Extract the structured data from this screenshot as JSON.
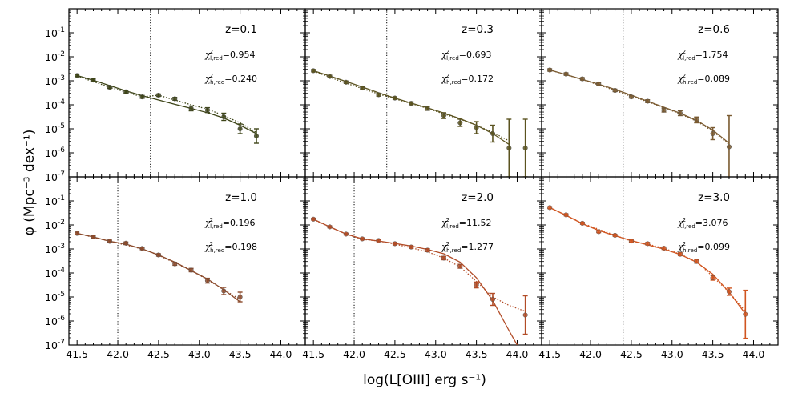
{
  "figure": {
    "ylabel": "φ (Mpc⁻³ dex⁻¹)",
    "xlabel": "log(L[OIII] erg s⁻¹)"
  },
  "chart_data": {
    "type": "scatter",
    "x_range": [
      41.4,
      44.3
    ],
    "y_range_log10": [
      -7,
      0
    ],
    "x_ticks": [
      "41.5",
      "42.0",
      "42.5",
      "43.0",
      "43.5",
      "44.0"
    ],
    "y_ticks": [
      "10^-7",
      "10^-6",
      "10^-5",
      "10^-4",
      "10^-3",
      "10^-2",
      "10^-1"
    ],
    "panels": [
      {
        "z_label": "z=0.1",
        "chi_low_label": "χ²l,red=0.954",
        "chi_high_label": "χ²h,red=0.240",
        "color": "#3d4417",
        "completeness_limit": 42.4,
        "points": [
          {
            "x": 41.5,
            "y": -2.78,
            "err": 0.05
          },
          {
            "x": 41.7,
            "y": -2.97,
            "err": 0.05
          },
          {
            "x": 41.9,
            "y": -3.27,
            "err": 0.05
          },
          {
            "x": 42.1,
            "y": -3.46,
            "err": 0.05
          },
          {
            "x": 42.3,
            "y": -3.67,
            "err": 0.06
          },
          {
            "x": 42.5,
            "y": -3.6,
            "err": 0.05
          },
          {
            "x": 42.7,
            "y": -3.75,
            "err": 0.06
          },
          {
            "x": 42.9,
            "y": -4.15,
            "err": 0.1
          },
          {
            "x": 43.1,
            "y": -4.22,
            "err": 0.1
          },
          {
            "x": 43.3,
            "y": -4.5,
            "err": 0.15
          },
          {
            "x": 43.5,
            "y": -5.0,
            "err": 0.2
          },
          {
            "x": 43.7,
            "y": -5.3,
            "err": 0.3
          }
        ],
        "fit_low": [
          [
            41.5,
            -2.78
          ],
          [
            41.7,
            -2.98
          ],
          [
            41.9,
            -3.2
          ],
          [
            42.1,
            -3.42
          ],
          [
            42.3,
            -3.62
          ],
          [
            42.5,
            -3.8
          ],
          [
            42.7,
            -3.98
          ],
          [
            42.9,
            -4.15
          ],
          [
            43.1,
            -4.33
          ],
          [
            43.3,
            -4.55
          ],
          [
            43.5,
            -4.85
          ],
          [
            43.7,
            -5.2
          ]
        ],
        "fit_high": [
          [
            41.5,
            -2.8
          ],
          [
            41.9,
            -3.27
          ],
          [
            42.3,
            -3.67
          ],
          [
            42.5,
            -3.6
          ],
          [
            42.7,
            -3.8
          ],
          [
            42.9,
            -4.0
          ],
          [
            43.1,
            -4.18
          ],
          [
            43.3,
            -4.45
          ],
          [
            43.5,
            -4.75
          ],
          [
            43.7,
            -5.15
          ]
        ]
      },
      {
        "z_label": "z=0.3",
        "chi_low_label": "χ²l,red=0.693",
        "chi_high_label": "χ²h,red=0.172",
        "color": "#5b5320",
        "completeness_limit": 42.4,
        "points": [
          {
            "x": 41.5,
            "y": -2.58,
            "err": 0.05
          },
          {
            "x": 41.7,
            "y": -2.82,
            "err": 0.05
          },
          {
            "x": 41.9,
            "y": -3.06,
            "err": 0.05
          },
          {
            "x": 42.1,
            "y": -3.3,
            "err": 0.05
          },
          {
            "x": 42.3,
            "y": -3.58,
            "err": 0.06
          },
          {
            "x": 42.5,
            "y": -3.72,
            "err": 0.05
          },
          {
            "x": 42.7,
            "y": -3.94,
            "err": 0.06
          },
          {
            "x": 42.9,
            "y": -4.15,
            "err": 0.08
          },
          {
            "x": 43.1,
            "y": -4.45,
            "err": 0.12
          },
          {
            "x": 43.3,
            "y": -4.75,
            "err": 0.15
          },
          {
            "x": 43.5,
            "y": -4.95,
            "err": 0.25
          },
          {
            "x": 43.7,
            "y": -5.2,
            "err": 0.35
          },
          {
            "x": 43.9,
            "y": -5.8,
            "err": 1.2
          },
          {
            "x": 44.1,
            "y": -5.8,
            "err": 1.2
          }
        ],
        "fit_low": [
          [
            41.5,
            -2.58
          ],
          [
            41.7,
            -2.8
          ],
          [
            41.9,
            -3.03
          ],
          [
            42.1,
            -3.26
          ],
          [
            42.3,
            -3.5
          ],
          [
            42.5,
            -3.72
          ],
          [
            42.7,
            -3.93
          ],
          [
            42.9,
            -4.13
          ],
          [
            43.1,
            -4.34
          ],
          [
            43.3,
            -4.58
          ],
          [
            43.5,
            -4.85
          ],
          [
            43.7,
            -5.2
          ],
          [
            43.9,
            -5.65
          ]
        ],
        "fit_high": [
          [
            41.5,
            -2.6
          ],
          [
            41.9,
            -3.1
          ],
          [
            42.3,
            -3.55
          ],
          [
            42.5,
            -3.75
          ],
          [
            42.7,
            -3.95
          ],
          [
            42.9,
            -4.15
          ],
          [
            43.1,
            -4.38
          ],
          [
            43.3,
            -4.6
          ],
          [
            43.5,
            -4.85
          ],
          [
            43.7,
            -5.15
          ],
          [
            43.9,
            -5.5
          ]
        ]
      },
      {
        "z_label": "z=0.6",
        "chi_low_label": "χ²l,red=1.754",
        "chi_high_label": "χ²h,red=0.089",
        "color": "#7a5a30",
        "completeness_limit": 42.4,
        "points": [
          {
            "x": 41.5,
            "y": -2.55,
            "err": 0.05
          },
          {
            "x": 41.7,
            "y": -2.72,
            "err": 0.05
          },
          {
            "x": 41.9,
            "y": -2.92,
            "err": 0.05
          },
          {
            "x": 42.1,
            "y": -3.13,
            "err": 0.05
          },
          {
            "x": 42.3,
            "y": -3.4,
            "err": 0.05
          },
          {
            "x": 42.5,
            "y": -3.67,
            "err": 0.05
          },
          {
            "x": 42.7,
            "y": -3.85,
            "err": 0.06
          },
          {
            "x": 42.9,
            "y": -4.22,
            "err": 0.08
          },
          {
            "x": 43.1,
            "y": -4.35,
            "err": 0.1
          },
          {
            "x": 43.3,
            "y": -4.63,
            "err": 0.12
          },
          {
            "x": 43.5,
            "y": -5.2,
            "err": 0.25
          },
          {
            "x": 43.7,
            "y": -5.75,
            "err": 1.3
          }
        ],
        "fit_low": [
          [
            41.5,
            -2.55
          ],
          [
            41.7,
            -2.74
          ],
          [
            41.9,
            -2.94
          ],
          [
            42.1,
            -3.14
          ],
          [
            42.3,
            -3.36
          ],
          [
            42.5,
            -3.6
          ],
          [
            42.7,
            -3.85
          ],
          [
            42.9,
            -4.1
          ],
          [
            43.1,
            -4.35
          ],
          [
            43.3,
            -4.65
          ],
          [
            43.5,
            -5.05
          ],
          [
            43.7,
            -5.6
          ]
        ],
        "fit_high": [
          [
            41.5,
            -2.55
          ],
          [
            41.9,
            -2.95
          ],
          [
            42.3,
            -3.4
          ],
          [
            42.5,
            -3.65
          ],
          [
            42.7,
            -3.87
          ],
          [
            42.9,
            -4.12
          ],
          [
            43.1,
            -4.38
          ],
          [
            43.3,
            -4.68
          ],
          [
            43.5,
            -5.1
          ],
          [
            43.7,
            -5.65
          ]
        ]
      },
      {
        "z_label": "z=1.0",
        "chi_low_label": "χ²l,red=0.196",
        "chi_high_label": "χ²h,red=0.198",
        "color": "#8b4a2b",
        "completeness_limit": 42.0,
        "points": [
          {
            "x": 41.5,
            "y": -2.35,
            "err": 0.05
          },
          {
            "x": 41.7,
            "y": -2.5,
            "err": 0.05
          },
          {
            "x": 41.9,
            "y": -2.68,
            "err": 0.05
          },
          {
            "x": 42.1,
            "y": -2.76,
            "err": 0.05
          },
          {
            "x": 42.3,
            "y": -2.98,
            "err": 0.05
          },
          {
            "x": 42.5,
            "y": -3.25,
            "err": 0.05
          },
          {
            "x": 42.7,
            "y": -3.62,
            "err": 0.06
          },
          {
            "x": 42.9,
            "y": -3.88,
            "err": 0.07
          },
          {
            "x": 43.1,
            "y": -4.32,
            "err": 0.1
          },
          {
            "x": 43.3,
            "y": -4.75,
            "err": 0.15
          },
          {
            "x": 43.5,
            "y": -5.0,
            "err": 0.2
          }
        ],
        "fit_low": [
          [
            41.5,
            -2.35
          ],
          [
            41.7,
            -2.5
          ],
          [
            41.9,
            -2.68
          ],
          [
            42.1,
            -2.8
          ],
          [
            42.3,
            -3.0
          ],
          [
            42.5,
            -3.25
          ],
          [
            42.7,
            -3.55
          ],
          [
            42.9,
            -3.9
          ],
          [
            43.1,
            -4.25
          ],
          [
            43.3,
            -4.7
          ],
          [
            43.5,
            -5.2
          ]
        ],
        "fit_high": [
          [
            41.5,
            -2.35
          ],
          [
            41.9,
            -2.68
          ],
          [
            42.3,
            -3.0
          ],
          [
            42.5,
            -3.26
          ],
          [
            42.7,
            -3.58
          ],
          [
            42.9,
            -3.9
          ],
          [
            43.1,
            -4.28
          ],
          [
            43.3,
            -4.7
          ],
          [
            43.5,
            -5.1
          ]
        ]
      },
      {
        "z_label": "z=2.0",
        "chi_low_label": "χ²l,red=11.52",
        "chi_high_label": "χ²h,red=1.277",
        "color": "#b24c27",
        "completeness_limit": 42.0,
        "points": [
          {
            "x": 41.5,
            "y": -1.76,
            "err": 0.04
          },
          {
            "x": 41.7,
            "y": -2.08,
            "err": 0.04
          },
          {
            "x": 41.9,
            "y": -2.38,
            "err": 0.04
          },
          {
            "x": 42.1,
            "y": -2.58,
            "err": 0.04
          },
          {
            "x": 42.3,
            "y": -2.65,
            "err": 0.04
          },
          {
            "x": 42.5,
            "y": -2.78,
            "err": 0.05
          },
          {
            "x": 42.7,
            "y": -2.92,
            "err": 0.05
          },
          {
            "x": 42.9,
            "y": -3.05,
            "err": 0.06
          },
          {
            "x": 43.1,
            "y": -3.38,
            "err": 0.07
          },
          {
            "x": 43.3,
            "y": -3.72,
            "err": 0.08
          },
          {
            "x": 43.5,
            "y": -4.5,
            "err": 0.12
          },
          {
            "x": 43.7,
            "y": -5.1,
            "err": 0.25
          },
          {
            "x": 44.1,
            "y": -5.75,
            "err": 0.8
          }
        ],
        "fit_low": [
          [
            41.5,
            -1.76
          ],
          [
            41.7,
            -2.08
          ],
          [
            41.9,
            -2.38
          ],
          [
            42.1,
            -2.58
          ],
          [
            42.3,
            -2.67
          ],
          [
            42.5,
            -2.77
          ],
          [
            42.7,
            -2.88
          ],
          [
            42.9,
            -3.02
          ],
          [
            43.1,
            -3.2
          ],
          [
            43.3,
            -3.55
          ],
          [
            43.5,
            -4.2
          ],
          [
            43.7,
            -5.15
          ],
          [
            43.9,
            -6.4
          ],
          [
            44.0,
            -7.0
          ]
        ],
        "fit_high": [
          [
            41.5,
            -1.78
          ],
          [
            41.9,
            -2.38
          ],
          [
            42.1,
            -2.6
          ],
          [
            42.3,
            -2.67
          ],
          [
            42.5,
            -2.8
          ],
          [
            42.7,
            -2.95
          ],
          [
            42.9,
            -3.12
          ],
          [
            43.1,
            -3.38
          ],
          [
            43.3,
            -3.75
          ],
          [
            43.5,
            -4.35
          ],
          [
            43.7,
            -5.0
          ],
          [
            43.9,
            -5.35
          ],
          [
            44.1,
            -5.6
          ]
        ]
      },
      {
        "z_label": "z=3.0",
        "chi_low_label": "χ²l,red=3.076",
        "chi_high_label": "χ²h,red=0.099",
        "color": "#d05520",
        "completeness_limit": 42.4,
        "points": [
          {
            "x": 41.5,
            "y": -1.28,
            "err": 0.04
          },
          {
            "x": 41.7,
            "y": -1.58,
            "err": 0.04
          },
          {
            "x": 41.9,
            "y": -1.93,
            "err": 0.04
          },
          {
            "x": 42.1,
            "y": -2.28,
            "err": 0.04
          },
          {
            "x": 42.3,
            "y": -2.43,
            "err": 0.04
          },
          {
            "x": 42.5,
            "y": -2.67,
            "err": 0.05
          },
          {
            "x": 42.7,
            "y": -2.78,
            "err": 0.05
          },
          {
            "x": 42.9,
            "y": -2.97,
            "err": 0.05
          },
          {
            "x": 43.1,
            "y": -3.22,
            "err": 0.06
          },
          {
            "x": 43.3,
            "y": -3.52,
            "err": 0.07
          },
          {
            "x": 43.5,
            "y": -4.2,
            "err": 0.1
          },
          {
            "x": 43.7,
            "y": -4.78,
            "err": 0.15
          },
          {
            "x": 43.9,
            "y": -5.72,
            "err": 1.0
          }
        ],
        "fit_low": [
          [
            41.5,
            -1.28
          ],
          [
            41.7,
            -1.6
          ],
          [
            41.9,
            -1.95
          ],
          [
            42.1,
            -2.23
          ],
          [
            42.3,
            -2.45
          ],
          [
            42.5,
            -2.65
          ],
          [
            42.7,
            -2.83
          ],
          [
            42.9,
            -3.01
          ],
          [
            43.1,
            -3.23
          ],
          [
            43.3,
            -3.55
          ],
          [
            43.5,
            -4.05
          ],
          [
            43.7,
            -4.8
          ],
          [
            43.9,
            -5.7
          ]
        ],
        "fit_high": [
          [
            41.5,
            -1.28
          ],
          [
            41.9,
            -1.93
          ],
          [
            42.3,
            -2.43
          ],
          [
            42.5,
            -2.67
          ],
          [
            42.7,
            -2.8
          ],
          [
            42.9,
            -2.97
          ],
          [
            43.1,
            -3.22
          ],
          [
            43.3,
            -3.52
          ],
          [
            43.5,
            -4.15
          ],
          [
            43.7,
            -4.8
          ],
          [
            43.9,
            -5.6
          ]
        ]
      }
    ]
  }
}
